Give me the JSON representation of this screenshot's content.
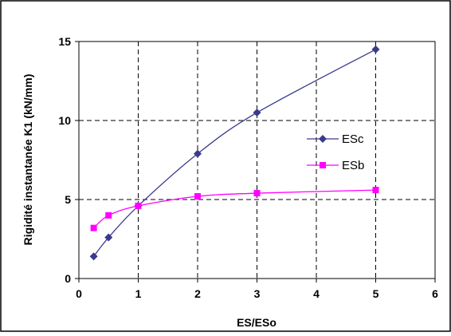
{
  "chart_data": {
    "type": "line",
    "xlabel": "ES/ESo",
    "ylabel": "Rigidité instantanée K1 (kN/mm)",
    "xlim": [
      0,
      6
    ],
    "ylim": [
      0,
      15
    ],
    "x_ticks": [
      "0",
      "1",
      "2",
      "3",
      "4",
      "5",
      "6"
    ],
    "y_ticks": [
      "0",
      "5",
      "10",
      "15"
    ],
    "grid": "dashed",
    "legend_position": "right",
    "series": [
      {
        "name": "ESc",
        "color": "#3a3a8c",
        "marker": "diamond",
        "x": [
          0.25,
          0.5,
          1,
          2,
          3,
          5
        ],
        "y": [
          1.4,
          2.6,
          4.6,
          7.9,
          10.5,
          14.5
        ]
      },
      {
        "name": "ESb",
        "color": "#ff00ff",
        "marker": "square",
        "x": [
          0.25,
          0.5,
          1,
          2,
          3,
          5
        ],
        "y": [
          3.2,
          4.0,
          4.6,
          5.2,
          5.4,
          5.6
        ]
      }
    ]
  }
}
